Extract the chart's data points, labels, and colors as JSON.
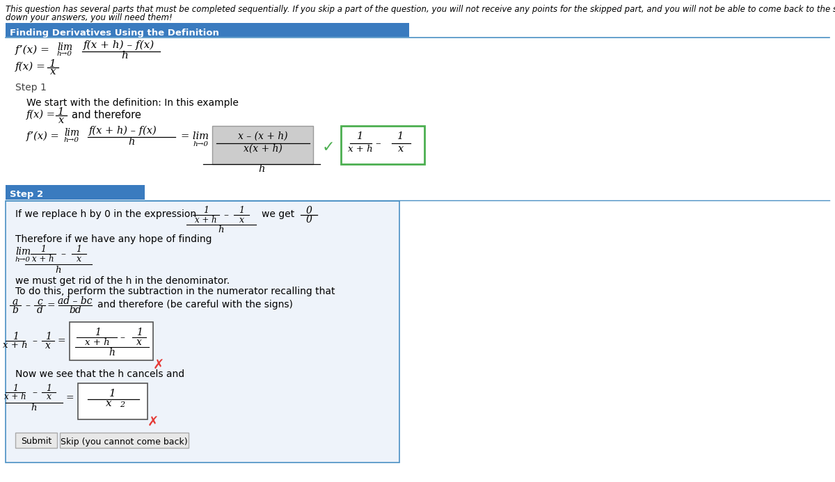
{
  "bg_color": "#ffffff",
  "border_color": "#4a90c4",
  "header_bg": "#3a7bbf",
  "header_text_color": "#ffffff",
  "header_title": "Finding Derivatives Using the Definition",
  "step2_header_text": "Step 2",
  "top_line1": "This question has several parts that must be completed sequentially. If you skip a part of the question, you will not receive any points for the skipped part, and you will not be able to come back to the skipped part so write",
  "top_line2": "down your answers, you will need them!",
  "green_check_color": "#4caf50",
  "red_x_color": "#e53935",
  "box_green_border": "#4caf50",
  "step2_header_bg": "#3a7bbf"
}
